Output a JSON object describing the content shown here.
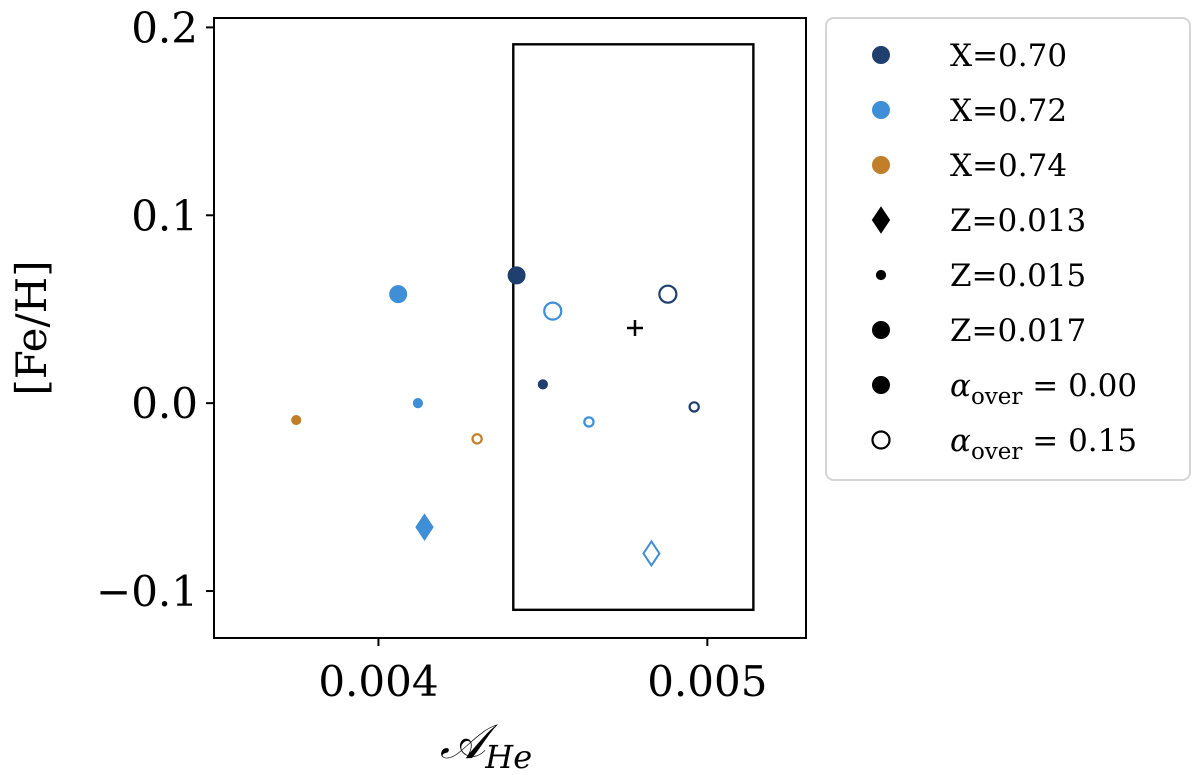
{
  "chart_data": {
    "type": "scatter",
    "title": "",
    "xlabel": "𝒜",
    "xlabel_sub": "He",
    "ylabel": "[Fe/H]",
    "xlim": [
      0.0035,
      0.0053
    ],
    "ylim": [
      -0.125,
      0.205
    ],
    "xticks": [
      {
        "value": 0.004,
        "label": "0.004"
      },
      {
        "value": 0.005,
        "label": "0.005"
      }
    ],
    "yticks": [
      {
        "value": 0.2,
        "label": "0.2"
      },
      {
        "value": 0.1,
        "label": "0.1"
      },
      {
        "value": 0.0,
        "label": "0.0"
      },
      {
        "value": -0.1,
        "label": "−0.1"
      }
    ],
    "colors": {
      "X=0.70": "#1f3f6e",
      "X=0.72": "#3e8fd8",
      "X=0.74": "#c17f2a"
    },
    "points": [
      {
        "x": 0.00406,
        "y": 0.058,
        "X": "X=0.72",
        "Z": "Z=0.017",
        "alpha": "0.00"
      },
      {
        "x": 0.00442,
        "y": 0.068,
        "X": "X=0.70",
        "Z": "Z=0.017",
        "alpha": "0.00"
      },
      {
        "x": 0.00453,
        "y": 0.049,
        "X": "X=0.72",
        "Z": "Z=0.017",
        "alpha": "0.15"
      },
      {
        "x": 0.00488,
        "y": 0.058,
        "X": "X=0.70",
        "Z": "Z=0.017",
        "alpha": "0.15"
      },
      {
        "x": 0.00412,
        "y": 0.0,
        "X": "X=0.72",
        "Z": "Z=0.015",
        "alpha": "0.00"
      },
      {
        "x": 0.00375,
        "y": -0.009,
        "X": "X=0.74",
        "Z": "Z=0.015",
        "alpha": "0.00"
      },
      {
        "x": 0.0043,
        "y": -0.019,
        "X": "X=0.74",
        "Z": "Z=0.015",
        "alpha": "0.15"
      },
      {
        "x": 0.0045,
        "y": 0.01,
        "X": "X=0.70",
        "Z": "Z=0.015",
        "alpha": "0.00"
      },
      {
        "x": 0.00464,
        "y": -0.01,
        "X": "X=0.72",
        "Z": "Z=0.015",
        "alpha": "0.15"
      },
      {
        "x": 0.00496,
        "y": -0.002,
        "X": "X=0.70",
        "Z": "Z=0.015",
        "alpha": "0.15"
      },
      {
        "x": 0.00414,
        "y": -0.066,
        "X": "X=0.72",
        "Z": "Z=0.013",
        "alpha": "0.00"
      },
      {
        "x": 0.00483,
        "y": -0.08,
        "X": "X=0.72",
        "Z": "Z=0.013",
        "alpha": "0.15"
      }
    ],
    "reference_point": {
      "x": 0.00478,
      "y": 0.04
    },
    "box": {
      "x0": 0.00441,
      "x1": 0.00514,
      "y0": -0.11,
      "y1": 0.191
    },
    "legend": {
      "placement": "outside-right",
      "entries": [
        {
          "label": "X=0.70",
          "marker": "circle",
          "color": "#1f3f6e",
          "fill": true,
          "size": "large"
        },
        {
          "label": "X=0.72",
          "marker": "circle",
          "color": "#3e8fd8",
          "fill": true,
          "size": "large"
        },
        {
          "label": "X=0.74",
          "marker": "circle",
          "color": "#c17f2a",
          "fill": true,
          "size": "large"
        },
        {
          "label": "Z=0.013",
          "marker": "diamond",
          "color": "#000000",
          "fill": true,
          "size": "large"
        },
        {
          "label": "Z=0.015",
          "marker": "circle",
          "color": "#000000",
          "fill": true,
          "size": "small"
        },
        {
          "label": "Z=0.017",
          "marker": "circle",
          "color": "#000000",
          "fill": true,
          "size": "large"
        },
        {
          "label": "α",
          "sub": "over",
          "suffix": " = 0.00",
          "marker": "circle",
          "color": "#000000",
          "fill": true,
          "size": "large"
        },
        {
          "label": "α",
          "sub": "over",
          "suffix": " = 0.15",
          "marker": "circle",
          "color": "#000000",
          "fill": false,
          "size": "large"
        }
      ]
    }
  }
}
